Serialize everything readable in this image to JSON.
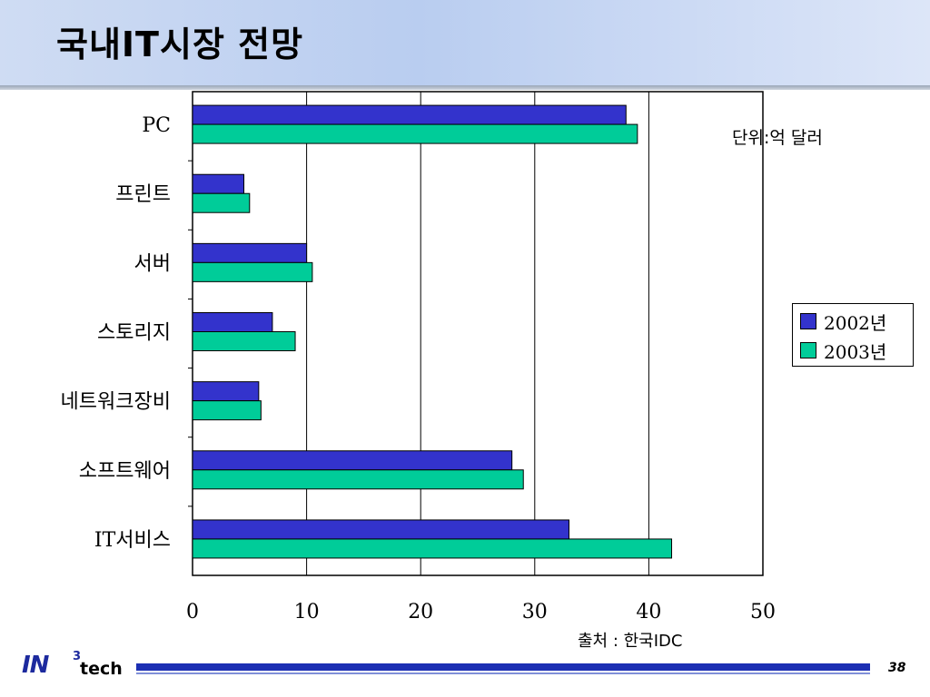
{
  "slide": {
    "title": "국내IT시장 전망",
    "unit_note": "단위:억 달러",
    "source": "출처 : 한국IDC",
    "page_number": "38",
    "logo": {
      "main": "IN",
      "superscript": "3",
      "suffix": "tech"
    }
  },
  "colors": {
    "series_2002": "#3333cc",
    "series_2003": "#00cc99",
    "footer_bar": "#1c2fb3"
  },
  "chart_data": {
    "type": "bar",
    "orientation": "horizontal",
    "categories": [
      "PC",
      "프린트",
      "서버",
      "스토리지",
      "네트워크장비",
      "소프트웨어",
      "IT서비스"
    ],
    "series": [
      {
        "name": "2002년",
        "values": [
          38,
          4.5,
          10,
          7,
          5.8,
          28,
          33
        ]
      },
      {
        "name": "2003년",
        "values": [
          39,
          5,
          10.5,
          9,
          6,
          29,
          42
        ]
      }
    ],
    "xlim": [
      0,
      50
    ],
    "xticks": [
      "0",
      "10",
      "20",
      "30",
      "40",
      "50"
    ],
    "grid": true,
    "legend_position": "right"
  }
}
